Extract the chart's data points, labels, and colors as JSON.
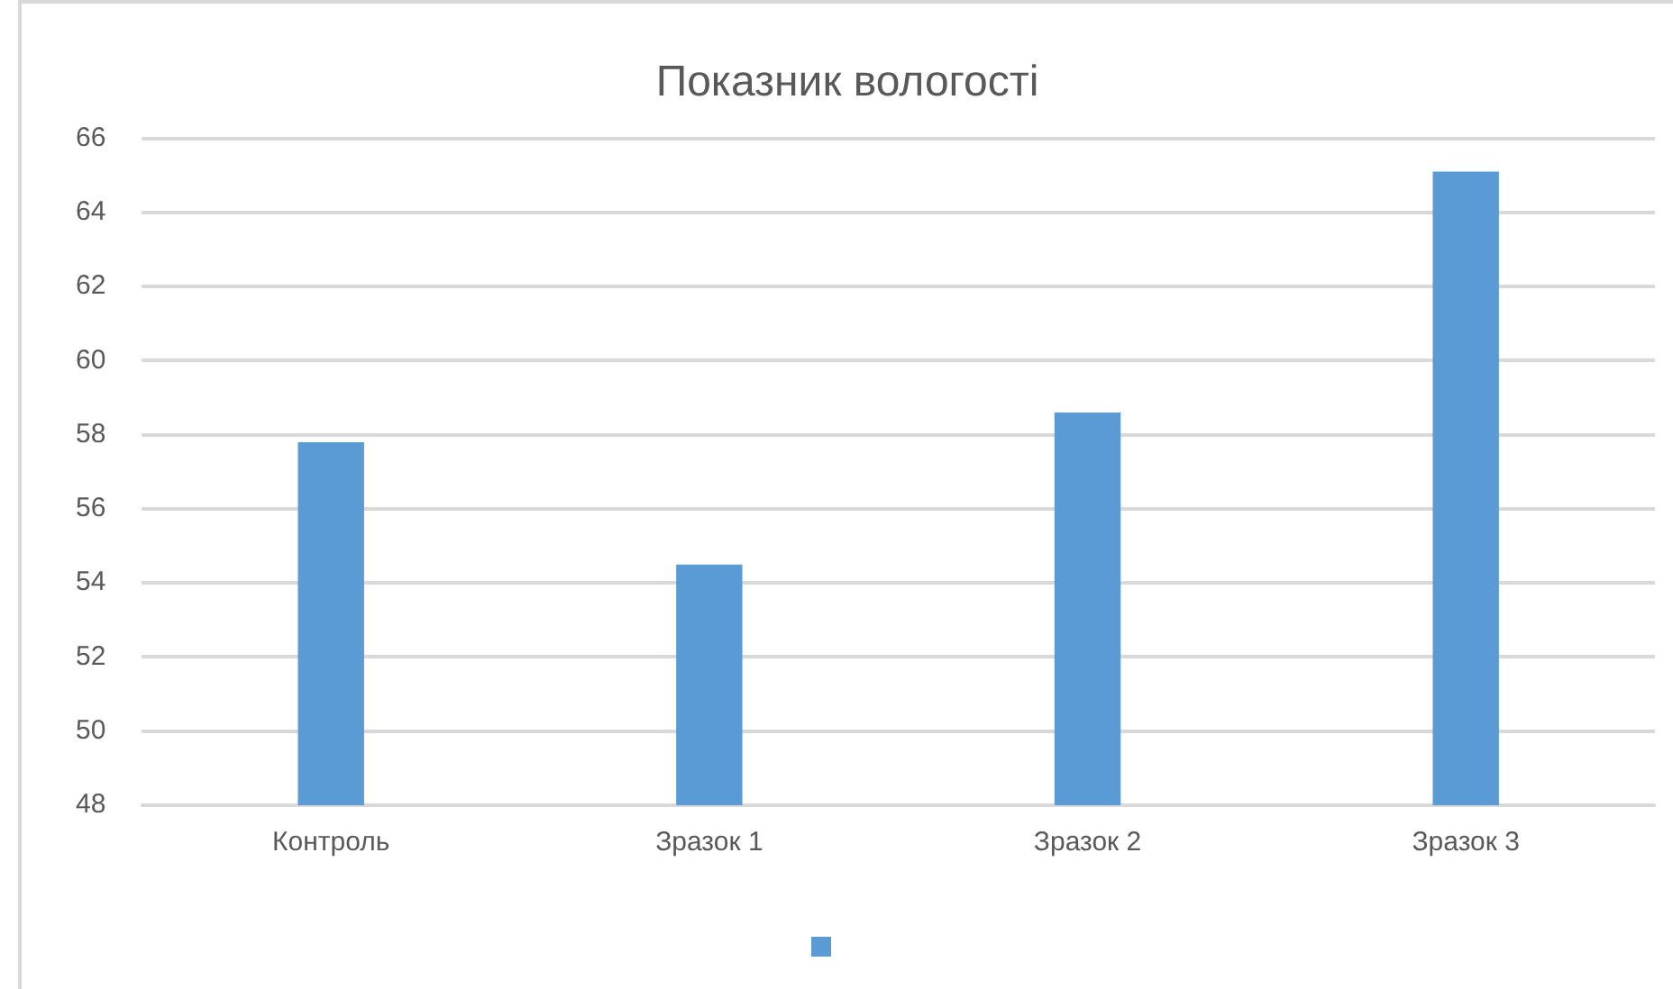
{
  "chart_data": {
    "type": "bar",
    "title": "Показник вологості",
    "categories": [
      "Контроль",
      "Зразок 1",
      "Зразок 2",
      "Зразок 3"
    ],
    "series": [
      {
        "color": "#5b9bd5",
        "values": [
          57.8,
          54.5,
          58.6,
          65.1
        ]
      }
    ],
    "ylim": [
      48,
      66
    ],
    "yticks": [
      48,
      50,
      52,
      54,
      56,
      58,
      60,
      62,
      64,
      66
    ],
    "grid": "y"
  }
}
